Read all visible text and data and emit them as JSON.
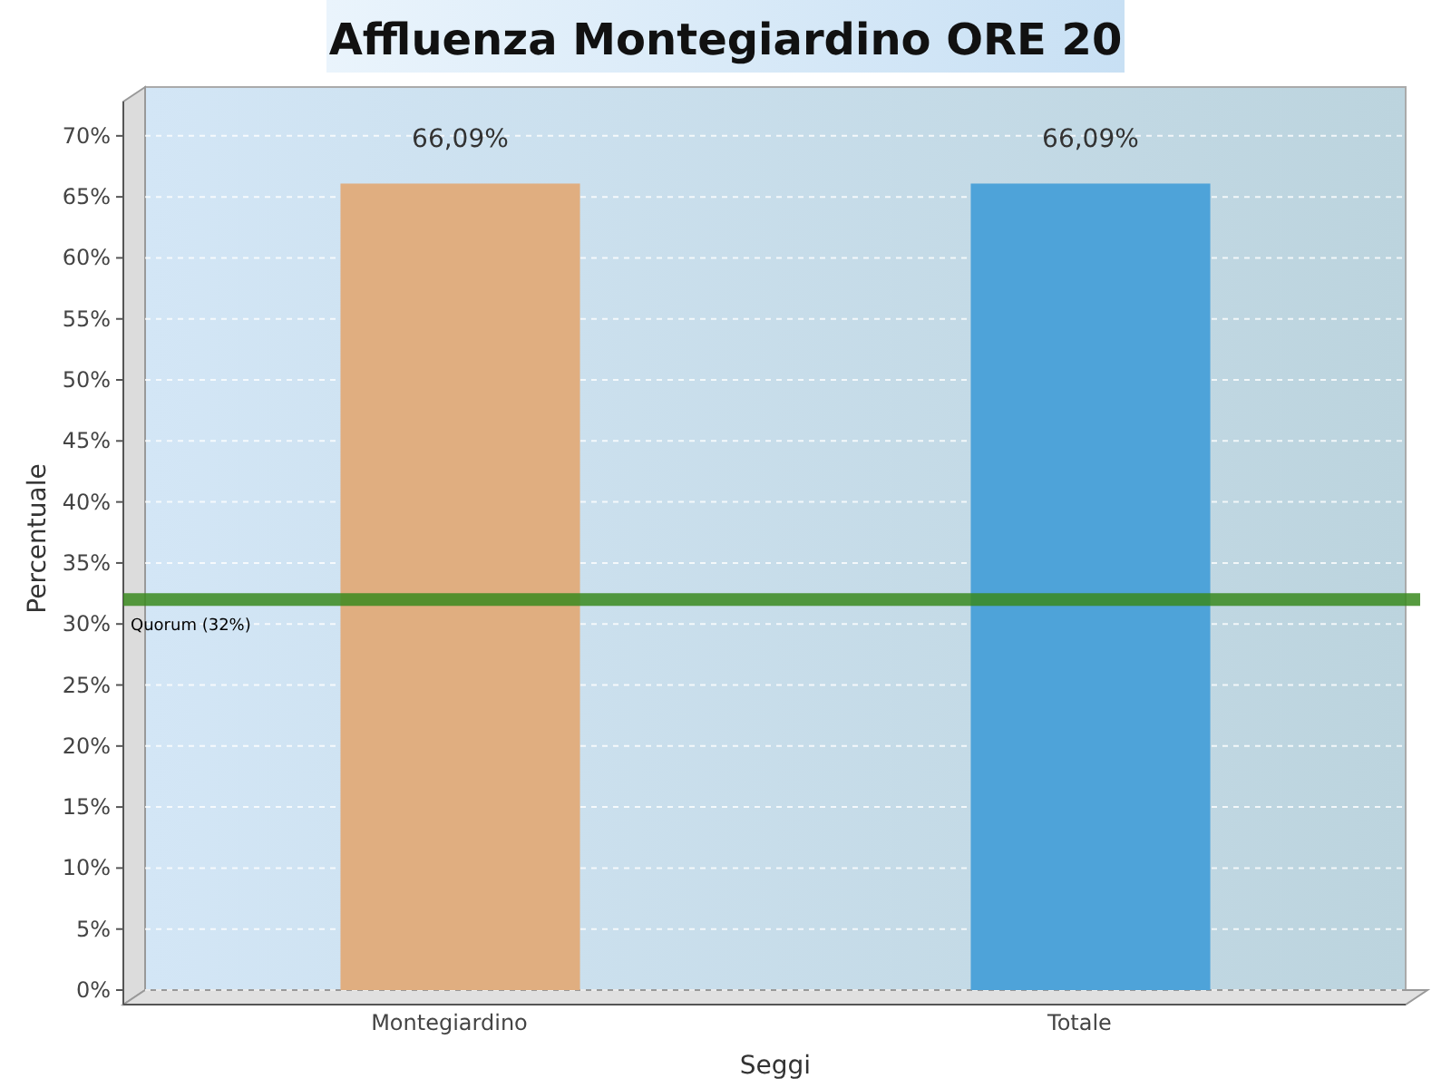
{
  "chart_data": {
    "type": "bar",
    "title": "Affluenza Montegiardino ORE 20",
    "xlabel": "Seggi",
    "ylabel": "Percentuale",
    "categories": [
      "Montegiardino",
      "Totale"
    ],
    "values": [
      66.09,
      66.09
    ],
    "colors": [
      "#e0ae80",
      "#4ea3d9"
    ],
    "value_labels": [
      "66,09%",
      "66,09%"
    ],
    "ylim": [
      0,
      74
    ],
    "yticks": [
      {
        "value": 0,
        "label": "0%"
      },
      {
        "value": 5,
        "label": "5%"
      },
      {
        "value": 10,
        "label": "10%"
      },
      {
        "value": 15,
        "label": "15%"
      },
      {
        "value": 20,
        "label": "20%"
      },
      {
        "value": 25,
        "label": "25%"
      },
      {
        "value": 30,
        "label": "30%"
      },
      {
        "value": 35,
        "label": "35%"
      },
      {
        "value": 40,
        "label": "40%"
      },
      {
        "value": 45,
        "label": "45%"
      },
      {
        "value": 50,
        "label": "50%"
      },
      {
        "value": 55,
        "label": "55%"
      },
      {
        "value": 60,
        "label": "60%"
      },
      {
        "value": 65,
        "label": "65%"
      },
      {
        "value": 70,
        "label": "70%"
      }
    ],
    "ref_lines": [
      {
        "axis": "y",
        "value": 32,
        "label": "Quorum (32%)",
        "color": "#3a8a1e"
      }
    ],
    "grid": "y"
  }
}
